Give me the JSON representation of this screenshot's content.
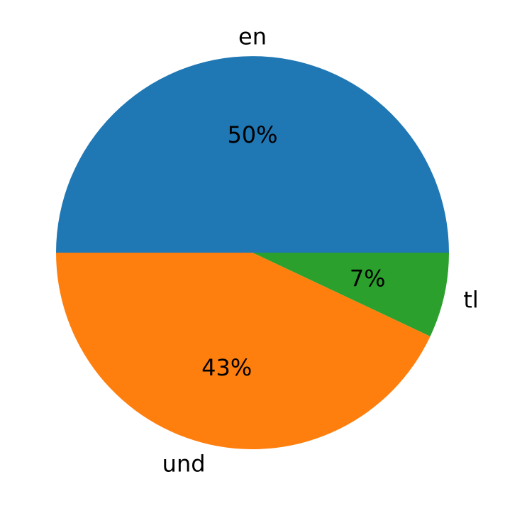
{
  "chart_data": {
    "type": "pie",
    "categories": [
      "en",
      "und",
      "tl"
    ],
    "values": [
      50,
      43,
      7
    ],
    "percent_labels": [
      "50%",
      "43%",
      "7%"
    ],
    "colors": [
      "#1f77b4",
      "#ff7f0e",
      "#2ca02c"
    ],
    "start_angle_deg": 0,
    "direction": "counterclockwise",
    "title": "",
    "legend": "none"
  }
}
